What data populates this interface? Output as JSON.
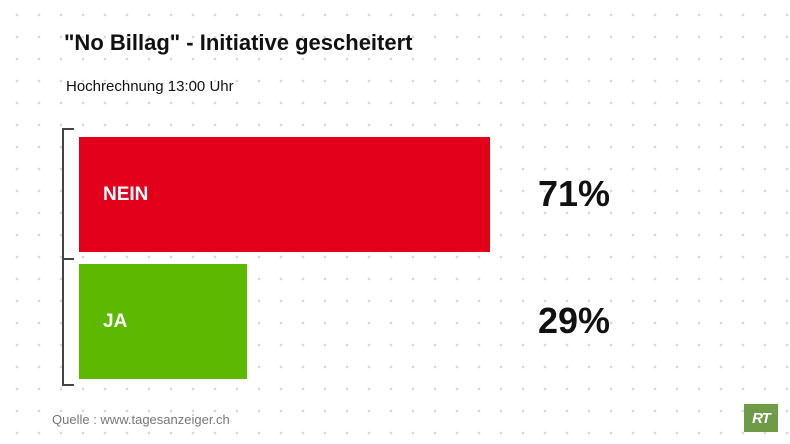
{
  "title": "\"No Billag\" - Initiative gescheitert",
  "subtitle": "Hochrechnung 13:00 Uhr",
  "source": "Quelle : www.tagesanzeiger.ch",
  "logo_text": "RT",
  "colors": {
    "nein": "#e3001b",
    "ja": "#5db800",
    "logo": "#6f9a47"
  },
  "chart_data": {
    "type": "bar",
    "orientation": "horizontal",
    "categories": [
      "NEIN",
      "JA"
    ],
    "values": [
      71,
      29
    ],
    "value_labels": [
      "71%",
      "29%"
    ],
    "xlim": [
      0,
      100
    ],
    "legend": "none",
    "grid": false
  }
}
